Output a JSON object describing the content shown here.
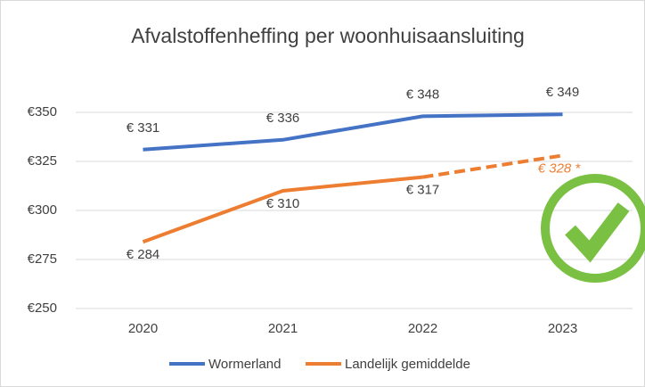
{
  "chart_data": {
    "type": "line",
    "title": "Afvalstoffenheffing per woonhuisaansluiting",
    "categories": [
      "2020",
      "2021",
      "2022",
      "2023"
    ],
    "series": [
      {
        "name": "Wormerland",
        "color": "#4472c4",
        "values": [
          331,
          336,
          348,
          349
        ],
        "value_labels": [
          "€ 331",
          "€ 336",
          "€ 348",
          "€ 349"
        ]
      },
      {
        "name": "Landelijk gemiddelde",
        "color": "#ed7d31",
        "values": [
          284,
          310,
          317,
          328
        ],
        "value_labels": [
          "€ 284",
          "€ 310",
          "€ 317",
          "€ 328 *"
        ],
        "dashed_from": 2
      }
    ],
    "ylim": [
      250,
      350
    ],
    "yticks": [
      {
        "value": 250,
        "label": "€250"
      },
      {
        "value": 275,
        "label": "€275"
      },
      {
        "value": 300,
        "label": "€300"
      },
      {
        "value": 325,
        "label": "€325"
      },
      {
        "value": 350,
        "label": "€350"
      }
    ],
    "grid": true,
    "legend": "bottom"
  }
}
